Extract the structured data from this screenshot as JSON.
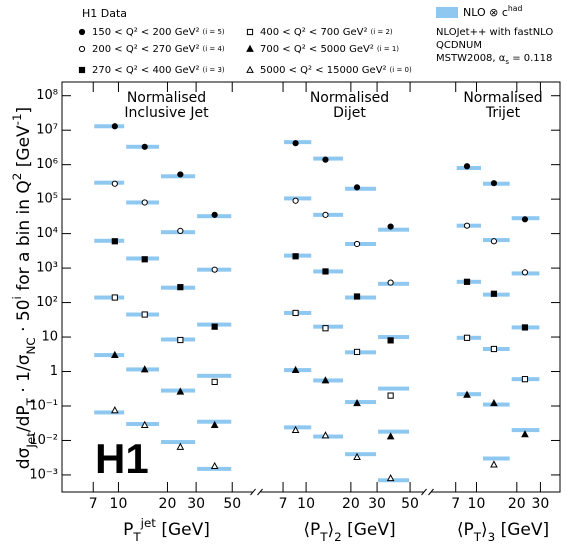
{
  "legend": {
    "title": "H1 Data",
    "entries": [
      {
        "label": "150 < Q² < 200 GeV²",
        "index": "(i = 5)",
        "marker": "filled-circle"
      },
      {
        "label": "200 < Q² < 270 GeV²",
        "index": "(i = 4)",
        "marker": "open-circle"
      },
      {
        "label": "270 < Q² < 400 GeV²",
        "index": "(i = 3)",
        "marker": "filled-square"
      },
      {
        "label": "400 < Q² < 700 GeV²",
        "index": "(i = 2)",
        "marker": "open-square"
      },
      {
        "label": "700 < Q² < 5000 GeV²",
        "index": "(i = 1)",
        "marker": "filled-triangle"
      },
      {
        "label": "5000 < Q² < 15000 GeV²",
        "index": "(i = 0)",
        "marker": "open-triangle"
      }
    ],
    "theory": [
      {
        "text": "NLO ⊗ c"
      },
      {
        "text": "had",
        "pos": "sup"
      }
    ],
    "theory_color": "#8ec8f0",
    "notes": [
      [
        {
          "text": "NLOJet++ with fastNLO"
        }
      ],
      [
        {
          "text": "QCDNUM"
        }
      ],
      [
        {
          "text": "MSTW2008, α"
        },
        {
          "text": "s",
          "pos": "sub"
        },
        {
          "text": " = 0.118"
        }
      ]
    ]
  },
  "logo": "H1",
  "y_label": [
    {
      "text": "dσ"
    },
    {
      "text": "Jet",
      "pos": "sub"
    },
    {
      "text": "/dP"
    },
    {
      "text": "T",
      "pos": "sub"
    },
    {
      "text": " · 1/σ"
    },
    {
      "text": "NC",
      "pos": "sub"
    },
    {
      "text": " · 50"
    },
    {
      "text": "i",
      "pos": "sup"
    },
    {
      "text": "  for a bin in Q"
    },
    {
      "text": "2",
      "pos": "sup"
    },
    {
      "text": "  [GeV"
    },
    {
      "text": "-1",
      "pos": "sup"
    },
    {
      "text": "]"
    }
  ],
  "chart_data": [
    {
      "type": "scatter",
      "title": [
        "Normalised",
        "Inclusive Jet"
      ],
      "x_label": [
        {
          "text": "P"
        },
        {
          "text": "T",
          "pos": "sub"
        },
        {
          "text": "jet",
          "pos": "sup"
        },
        {
          "text": " [GeV]"
        }
      ],
      "log_x": true,
      "log_y": true,
      "xlim": [
        4.5,
        69
      ],
      "xticks": [
        7,
        10,
        20,
        30,
        50
      ],
      "ylim": [
        0.00032,
        250000000
      ],
      "yticks": [
        {
          "value": 100000000,
          "label": "10⁸"
        },
        {
          "value": 10000000,
          "label": "10⁷"
        },
        {
          "value": 1000000,
          "label": "10⁶"
        },
        {
          "value": 100000,
          "label": "10⁵"
        },
        {
          "value": 10000,
          "label": "10⁴"
        },
        {
          "value": 1000,
          "label": "10³"
        },
        {
          "value": 100,
          "label": "10²"
        },
        10,
        1,
        {
          "value": 0.1,
          "label": "10⁻¹"
        },
        {
          "value": 0.01,
          "label": "10⁻²"
        },
        {
          "value": 0.001,
          "label": "10⁻³"
        }
      ],
      "bins": [
        7,
        11,
        18,
        30,
        50
      ],
      "x": [
        9.5,
        14.5,
        24,
        39
      ],
      "series": [
        {
          "values": [
            13000000,
            3300000,
            520000,
            35000
          ],
          "nlo": [
            13000000,
            3300000,
            460000,
            32000
          ]
        },
        {
          "values": [
            280000,
            80000,
            12000,
            900
          ],
          "nlo": [
            300000,
            80000,
            11000,
            900
          ]
        },
        {
          "values": [
            6000,
            1800,
            280,
            20
          ],
          "nlo": [
            6200,
            1900,
            270,
            23
          ]
        },
        {
          "values": [
            140,
            45,
            8.2,
            0.5
          ],
          "nlo": [
            140,
            45,
            8.5,
            0.75
          ]
        },
        {
          "values": [
            3.0,
            1.15,
            0.26,
            0.028
          ],
          "nlo": [
            3,
            1.15,
            0.28,
            0.035
          ]
        },
        {
          "values": [
            0.075,
            0.028,
            0.0065,
            0.0018
          ],
          "nlo": [
            0.065,
            0.03,
            0.009,
            0.0015
          ]
        }
      ]
    },
    {
      "type": "scatter",
      "title": [
        "Normalised",
        "Dijet"
      ],
      "x_label": [
        {
          "text": "⟨P"
        },
        {
          "text": "T",
          "pos": "sub"
        },
        {
          "text": "⟩"
        },
        {
          "text": "2",
          "pos": "sub"
        },
        {
          "text": " [GeV]"
        }
      ],
      "log_x": true,
      "log_y": true,
      "xlim": [
        4.75,
        63
      ],
      "xticks": [
        7,
        10,
        20,
        30,
        50
      ],
      "ylim": [
        0.00032,
        250000000
      ],
      "bins": [
        7,
        11,
        18,
        30,
        50
      ],
      "x": [
        8.5,
        13.5,
        22,
        37
      ],
      "series": [
        {
          "values": [
            4200000,
            1400000,
            220000,
            16000
          ],
          "nlo": [
            4500000,
            1500000,
            200000,
            13000
          ]
        },
        {
          "values": [
            90000,
            35000,
            5000,
            380
          ],
          "nlo": [
            105000,
            35000,
            5000,
            350
          ]
        },
        {
          "values": [
            2200,
            800,
            150,
            8
          ],
          "nlo": [
            2300,
            800,
            140,
            10
          ]
        },
        {
          "values": [
            50,
            18,
            3.7,
            0.2
          ],
          "nlo": [
            50,
            20,
            3.6,
            0.32
          ]
        },
        {
          "values": [
            1.1,
            0.55,
            0.12,
            0.013
          ],
          "nlo": [
            1.1,
            0.55,
            0.13,
            0.018
          ]
        },
        {
          "values": [
            0.02,
            0.014,
            0.0033,
            0.0008
          ],
          "nlo": [
            0.024,
            0.013,
            0.004,
            0.0007
          ]
        }
      ]
    },
    {
      "type": "scatter",
      "title": [
        "Normalised",
        "Trijet"
      ],
      "x_label": [
        {
          "text": "⟨P"
        },
        {
          "text": "T",
          "pos": "sub"
        },
        {
          "text": "⟩"
        },
        {
          "text": "3",
          "pos": "sub"
        },
        {
          "text": " [GeV]"
        }
      ],
      "log_x": true,
      "log_y": true,
      "xlim": [
        4.5,
        42
      ],
      "xticks": [
        7,
        10,
        20,
        30
      ],
      "ylim": [
        0.00032,
        250000000
      ],
      "bins": [
        7,
        11,
        18,
        30
      ],
      "x": [
        8.5,
        13.5,
        23
      ],
      "series": [
        {
          "values": [
            900000,
            290000,
            26000
          ],
          "nlo": [
            800000,
            280000,
            28000
          ]
        },
        {
          "values": [
            17000,
            6000,
            750
          ],
          "nlo": [
            17000,
            6500,
            700
          ]
        },
        {
          "values": [
            400,
            180,
            19
          ],
          "nlo": [
            400,
            170,
            19
          ]
        },
        {
          "values": [
            9.5,
            4.5,
            0.6
          ],
          "nlo": [
            9.5,
            4.5,
            0.6
          ]
        },
        {
          "values": [
            0.21,
            0.12,
            0.015
          ],
          "nlo": [
            0.22,
            0.11,
            0.02
          ]
        },
        {
          "values": [
            null,
            0.002,
            null
          ],
          "nlo": [
            null,
            0.003,
            null
          ]
        }
      ]
    }
  ]
}
